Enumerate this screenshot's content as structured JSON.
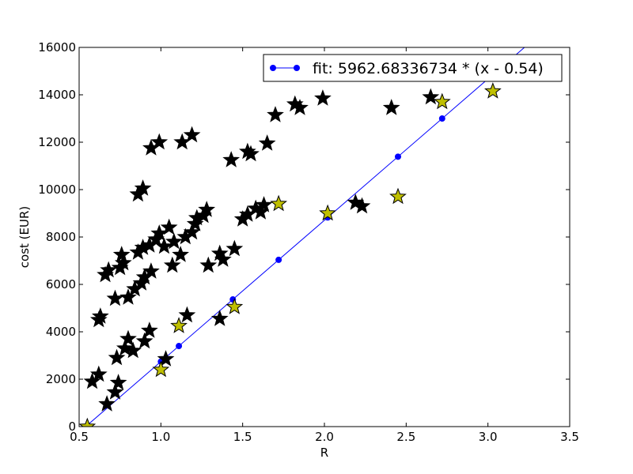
{
  "chart_data": {
    "type": "scatter",
    "xlabel": "R",
    "ylabel": "cost (EUR)",
    "xlim": [
      0.5,
      3.5
    ],
    "ylim": [
      0,
      16000
    ],
    "xticks": [
      "0.5",
      "1.0",
      "1.5",
      "2.0",
      "2.5",
      "3.0",
      "3.5"
    ],
    "yticks": [
      "0",
      "2000",
      "4000",
      "6000",
      "8000",
      "10000",
      "12000",
      "14000",
      "16000"
    ],
    "grid": false,
    "legend": {
      "position": "top-right",
      "entries": [
        "fit: 5962.68336734 * (x - 0.54)"
      ]
    },
    "colors": {
      "black_points": "#000000",
      "yellow_points": "#bfbf00",
      "fit_line": "#0000ff"
    },
    "series": [
      {
        "name": "",
        "marker": "star",
        "color": "#000000",
        "points": [
          [
            0.58,
            1900
          ],
          [
            0.62,
            2200
          ],
          [
            0.67,
            950
          ],
          [
            0.72,
            1450
          ],
          [
            0.74,
            1850
          ],
          [
            0.73,
            2900
          ],
          [
            0.78,
            3300
          ],
          [
            0.8,
            3700
          ],
          [
            0.83,
            3200
          ],
          [
            0.9,
            3600
          ],
          [
            0.93,
            4050
          ],
          [
            0.62,
            4500
          ],
          [
            0.63,
            4650
          ],
          [
            0.72,
            5400
          ],
          [
            0.8,
            5450
          ],
          [
            0.84,
            5800
          ],
          [
            0.88,
            6050
          ],
          [
            0.9,
            6300
          ],
          [
            0.94,
            6550
          ],
          [
            0.66,
            6400
          ],
          [
            0.68,
            6600
          ],
          [
            0.75,
            6700
          ],
          [
            0.77,
            6900
          ],
          [
            0.76,
            7250
          ],
          [
            0.86,
            7350
          ],
          [
            0.89,
            7550
          ],
          [
            0.93,
            7650
          ],
          [
            0.97,
            7900
          ],
          [
            0.99,
            8150
          ],
          [
            1.02,
            7600
          ],
          [
            1.05,
            8400
          ],
          [
            1.08,
            7800
          ],
          [
            1.07,
            6800
          ],
          [
            1.12,
            7250
          ],
          [
            1.15,
            8000
          ],
          [
            1.19,
            8200
          ],
          [
            1.21,
            8550
          ],
          [
            1.22,
            8800
          ],
          [
            1.26,
            8900
          ],
          [
            1.28,
            9150
          ],
          [
            1.29,
            6800
          ],
          [
            1.36,
            7300
          ],
          [
            1.38,
            7050
          ],
          [
            1.45,
            7500
          ],
          [
            1.5,
            8750
          ],
          [
            1.53,
            8950
          ],
          [
            1.58,
            9200
          ],
          [
            1.61,
            9050
          ],
          [
            1.63,
            9350
          ],
          [
            1.36,
            4550
          ],
          [
            1.16,
            4700
          ],
          [
            1.03,
            2850
          ],
          [
            0.86,
            9800
          ],
          [
            0.89,
            10050
          ],
          [
            1.43,
            11250
          ],
          [
            1.53,
            11600
          ],
          [
            1.55,
            11500
          ],
          [
            1.65,
            11950
          ],
          [
            0.94,
            11750
          ],
          [
            0.99,
            12000
          ],
          [
            1.13,
            12000
          ],
          [
            1.19,
            12300
          ],
          [
            1.7,
            13150
          ],
          [
            1.82,
            13600
          ],
          [
            1.85,
            13450
          ],
          [
            1.99,
            13850
          ],
          [
            2.19,
            9450
          ],
          [
            2.23,
            9300
          ],
          [
            2.41,
            13450
          ],
          [
            2.65,
            13900
          ]
        ]
      },
      {
        "name": "",
        "marker": "star",
        "color": "#bfbf00",
        "points": [
          [
            0.55,
            0
          ],
          [
            1.0,
            2400
          ],
          [
            1.11,
            4250
          ],
          [
            1.45,
            5050
          ],
          [
            1.72,
            9400
          ],
          [
            2.02,
            9000
          ],
          [
            2.45,
            9700
          ],
          [
            2.72,
            13700
          ],
          [
            3.03,
            14150
          ]
        ]
      },
      {
        "name": "fit: 5962.68336734 * (x - 0.54)",
        "type": "line",
        "marker": "circle",
        "color": "#0000ff",
        "slope": 5962.68336734,
        "intercept_x": 0.54,
        "x_markers": [
          1.0,
          1.11,
          1.44,
          1.72,
          2.02,
          2.45,
          2.72
        ],
        "points": [
          [
            1.0,
            2743
          ],
          [
            1.11,
            3399
          ],
          [
            1.44,
            5366
          ],
          [
            1.72,
            7036
          ],
          [
            2.02,
            8825
          ],
          [
            2.45,
            11389
          ],
          [
            2.72,
            12999
          ]
        ]
      }
    ]
  }
}
